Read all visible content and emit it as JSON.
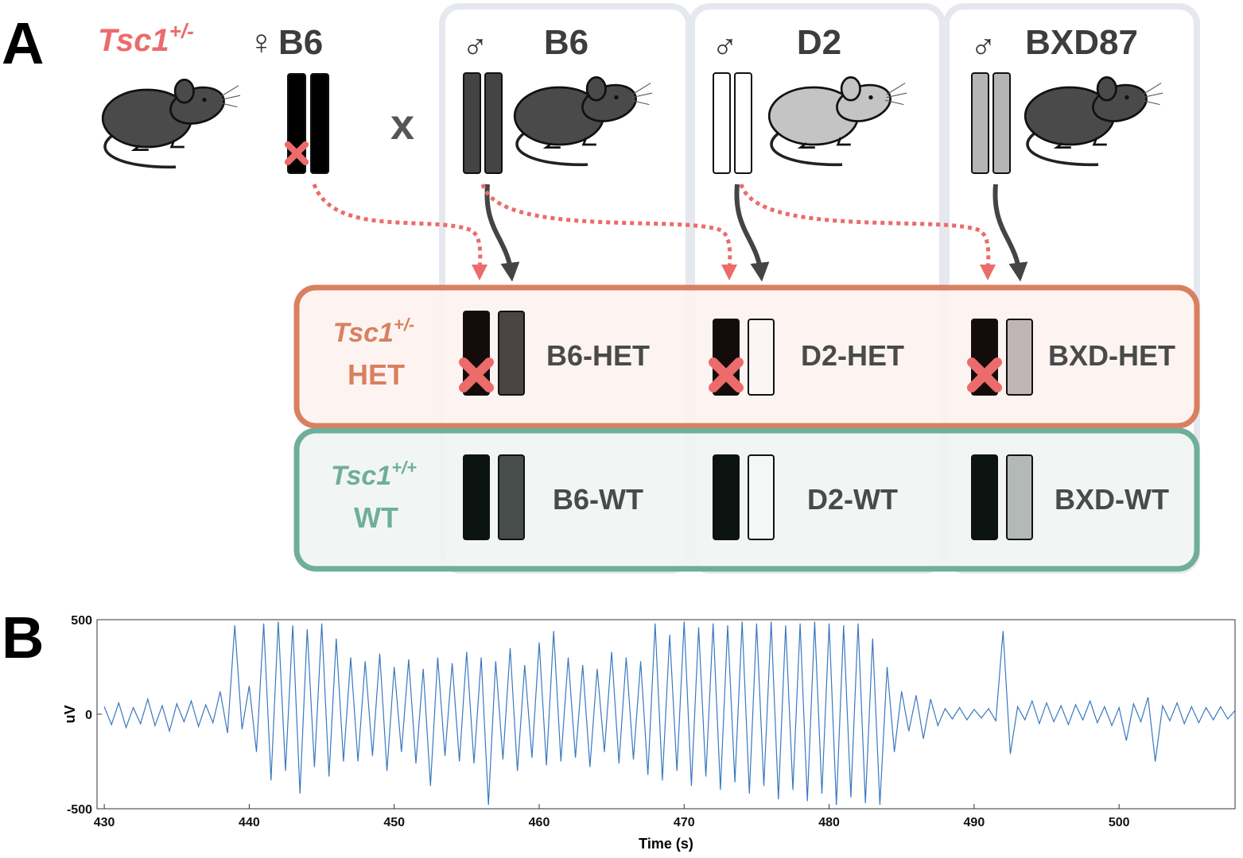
{
  "panel_labels": [
    "A",
    "B"
  ],
  "diagram": {
    "female": {
      "gene": "Tsc1",
      "superscript": "+/-",
      "symbol": "♀",
      "strain": "B6"
    },
    "cross": "x",
    "males": [
      {
        "symbol": "♂",
        "strain": "B6"
      },
      {
        "symbol": "♂",
        "strain": "D2"
      },
      {
        "symbol": "♂",
        "strain": "BXD87"
      }
    ],
    "rows": [
      {
        "gene": "Tsc1",
        "superscript": "+/-",
        "label": "HET",
        "offspring": [
          "B6-HET",
          "D2-HET",
          "BXD-HET"
        ]
      },
      {
        "gene": "Tsc1",
        "superscript": "+/+",
        "label": "WT",
        "offspring": [
          "B6-WT",
          "D2-WT",
          "BXD-WT"
        ]
      }
    ]
  },
  "chart_data": {
    "type": "line",
    "ylabel": "uV",
    "xlabel": "Time (s)",
    "color": "#3a78c0",
    "xlim": [
      429.5,
      508
    ],
    "ylim": [
      -500,
      500
    ],
    "xticks": [
      430,
      440,
      450,
      460,
      470,
      480,
      490,
      500
    ],
    "yticks": [
      -500,
      0,
      500
    ],
    "x": [
      430,
      430.5,
      431,
      431.5,
      432,
      432.5,
      433,
      433.5,
      434,
      434.5,
      435,
      435.5,
      436,
      436.5,
      437,
      437.5,
      438,
      438.5,
      439,
      439.5,
      440,
      440.5,
      441,
      441.5,
      442,
      442.5,
      443,
      443.5,
      444,
      444.5,
      445,
      445.5,
      446,
      446.5,
      447,
      447.5,
      448,
      448.5,
      449,
      449.5,
      450,
      450.5,
      451,
      451.5,
      452,
      452.5,
      453,
      453.5,
      454,
      454.5,
      455,
      455.5,
      456,
      456.5,
      457,
      457.5,
      458,
      458.5,
      459,
      459.5,
      460,
      460.5,
      461,
      461.5,
      462,
      462.5,
      463,
      463.5,
      464,
      464.5,
      465,
      465.5,
      466,
      466.5,
      467,
      467.5,
      468,
      468.5,
      469,
      469.5,
      470,
      470.5,
      471,
      471.5,
      472,
      472.5,
      473,
      473.5,
      474,
      474.5,
      475,
      475.5,
      476,
      476.5,
      477,
      477.5,
      478,
      478.5,
      479,
      479.5,
      480,
      480.5,
      481,
      481.5,
      482,
      482.5,
      483,
      483.5,
      484,
      484.5,
      485,
      485.5,
      486,
      486.5,
      487,
      487.5,
      488,
      488.5,
      489,
      489.5,
      490,
      490.5,
      491,
      491.5,
      492,
      492.5,
      493,
      493.5,
      494,
      494.5,
      495,
      495.5,
      496,
      496.5,
      497,
      497.5,
      498,
      498.5,
      499,
      499.5,
      500,
      500.5,
      501,
      501.5,
      502,
      502.5,
      503,
      503.5,
      504,
      504.5,
      505,
      505.5,
      506,
      506.5,
      507,
      507.5,
      508
    ],
    "values": [
      40,
      -55,
      60,
      -70,
      35,
      -50,
      80,
      -60,
      45,
      -90,
      55,
      -40,
      70,
      -65,
      50,
      -45,
      120,
      -100,
      470,
      -80,
      150,
      -200,
      480,
      -350,
      490,
      -300,
      470,
      -420,
      450,
      -280,
      480,
      -330,
      400,
      -250,
      300,
      -250,
      280,
      -220,
      320,
      -300,
      250,
      -200,
      290,
      -260,
      240,
      -380,
      300,
      -220,
      270,
      -250,
      330,
      -260,
      300,
      -480,
      280,
      -240,
      350,
      -300,
      260,
      -230,
      380,
      -270,
      440,
      -250,
      300,
      -230,
      260,
      -280,
      240,
      -200,
      330,
      -260,
      300,
      -240,
      280,
      -320,
      480,
      -350,
      420,
      -300,
      490,
      -380,
      460,
      -330,
      480,
      -400,
      470,
      -360,
      490,
      -420,
      480,
      -380,
      490,
      -450,
      470,
      -400,
      480,
      -460,
      490,
      -420,
      480,
      -480,
      470,
      -440,
      480,
      -470,
      400,
      -480,
      250,
      -200,
      120,
      -90,
      100,
      -130,
      80,
      -60,
      30,
      -25,
      35,
      -30,
      25,
      -20,
      30,
      -35,
      440,
      -210,
      40,
      -30,
      70,
      -50,
      60,
      -40,
      45,
      -55,
      50,
      -30,
      70,
      -45,
      40,
      -60,
      35,
      -140,
      55,
      -40,
      90,
      -250,
      45,
      -35,
      60,
      -50,
      40,
      -45,
      35,
      -30,
      40,
      -25,
      20
    ]
  }
}
